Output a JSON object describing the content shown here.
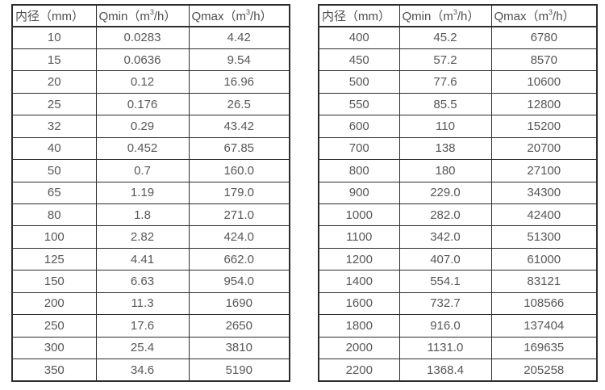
{
  "units": {
    "sup": "3",
    "suffix": "/h）"
  },
  "tables": [
    {
      "headers": {
        "diameter": "内径（mm）",
        "qmin_prefix": "Qmin（m",
        "qmax_prefix": "Qmax（m"
      },
      "rows": [
        [
          "10",
          "0.0283",
          "4.42"
        ],
        [
          "15",
          "0.0636",
          "9.54"
        ],
        [
          "20",
          "0.12",
          "16.96"
        ],
        [
          "25",
          "0.176",
          "26.5"
        ],
        [
          "32",
          "0.29",
          "43.42"
        ],
        [
          "40",
          "0.452",
          "67.85"
        ],
        [
          "50",
          "0.7",
          "160.0"
        ],
        [
          "65",
          "1.19",
          "179.0"
        ],
        [
          "80",
          "1.8",
          "271.0"
        ],
        [
          "100",
          "2.82",
          "424.0"
        ],
        [
          "125",
          "4.41",
          "662.0"
        ],
        [
          "150",
          "6.63",
          "954.0"
        ],
        [
          "200",
          "11.3",
          "1690"
        ],
        [
          "250",
          "17.6",
          "2650"
        ],
        [
          "300",
          "25.4",
          "3810"
        ],
        [
          "350",
          "34.6",
          "5190"
        ]
      ]
    },
    {
      "headers": {
        "diameter": "内径（mm）",
        "qmin_prefix": "Qmin（m",
        "qmax_prefix": "Qmax（m"
      },
      "rows": [
        [
          "400",
          "45.2",
          "6780"
        ],
        [
          "450",
          "57.2",
          "8570"
        ],
        [
          "500",
          "77.6",
          "10600"
        ],
        [
          "550",
          "85.5",
          "12800"
        ],
        [
          "600",
          "110",
          "15200"
        ],
        [
          "700",
          "138",
          "20700"
        ],
        [
          "800",
          "180",
          "27100"
        ],
        [
          "900",
          "229.0",
          "34300"
        ],
        [
          "1000",
          "282.0",
          "42400"
        ],
        [
          "1100",
          "342.0",
          "51300"
        ],
        [
          "1200",
          "407.0",
          "61000"
        ],
        [
          "1400",
          "554.1",
          "83121"
        ],
        [
          "1600",
          "732.7",
          "108566"
        ],
        [
          "1800",
          "916.0",
          "137404"
        ],
        [
          "2000",
          "1131.0",
          "169635"
        ],
        [
          "2200",
          "1368.4",
          "205258"
        ]
      ]
    }
  ]
}
